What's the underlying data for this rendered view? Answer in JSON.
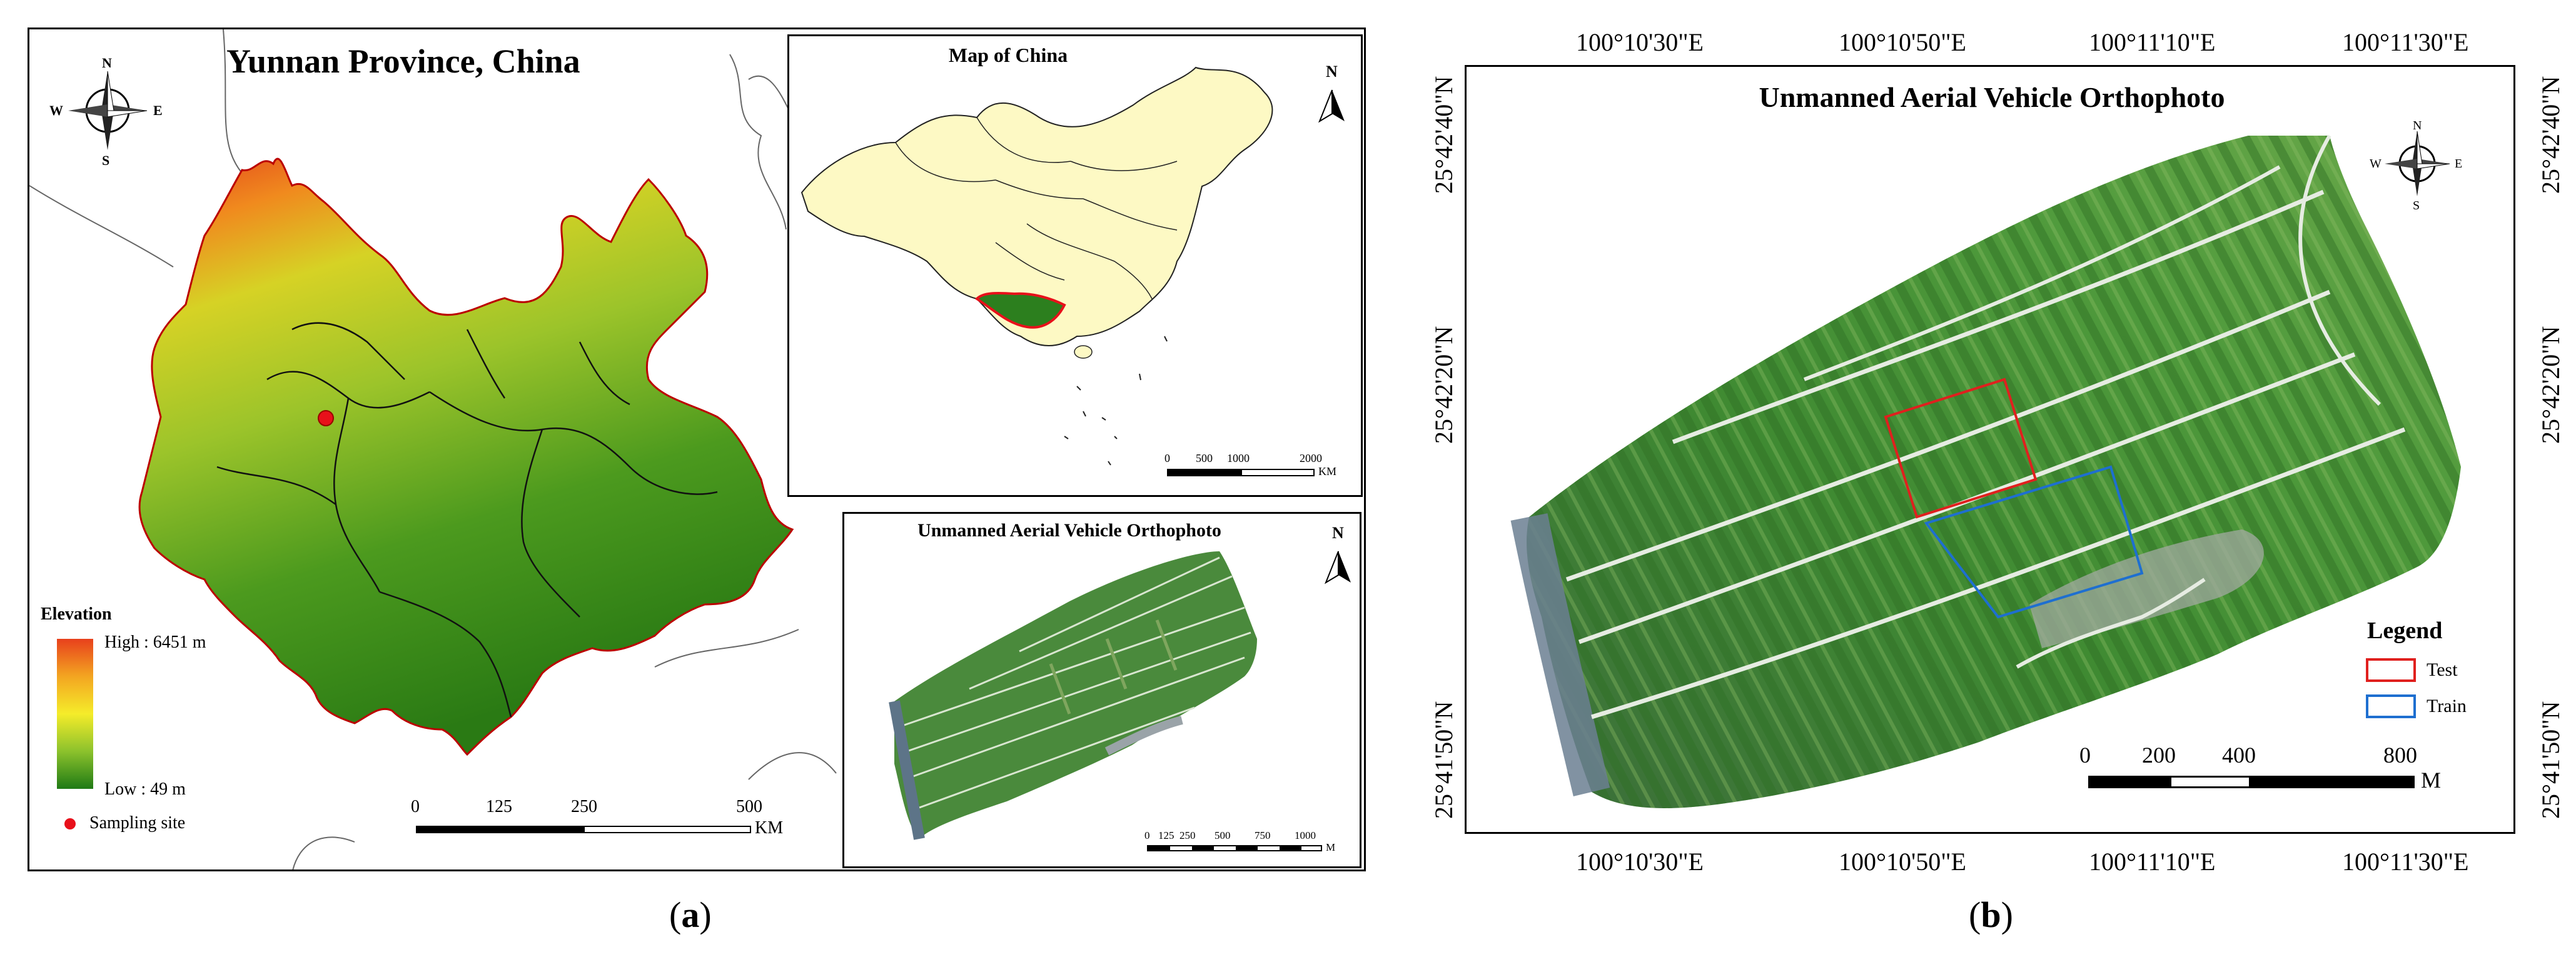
{
  "panel_a": {
    "title": "Yunnan Province, China",
    "compass": {
      "n": "N",
      "s": "S",
      "e": "E",
      "w": "W"
    },
    "legend": {
      "title": "Elevation",
      "high": "High : 6451 m",
      "low": "Low : 49 m",
      "site": "Sampling site",
      "colors": {
        "high": "#d7301f",
        "mid": "#ffff33",
        "low": "#1a7a1a",
        "site": "#e8101a"
      }
    },
    "scale": {
      "t0": "0",
      "t1": "125",
      "t2": "250",
      "t3": "500",
      "unit": "KM"
    },
    "inset_china": {
      "title": "Map of China",
      "north": "N",
      "scale": {
        "t0": "0",
        "t1": "500",
        "t2": "1000",
        "t3": "2000",
        "unit": "KM"
      }
    },
    "inset_uav": {
      "title": "Unmanned Aerial Vehicle Orthophoto",
      "north": "N",
      "scale": {
        "t0": "0",
        "t1": "125",
        "t2": "250",
        "t3": "500",
        "t4": "750",
        "t5": "1000",
        "unit": "M"
      }
    },
    "caption_letter": "a"
  },
  "panel_b": {
    "title": "Unmanned Aerial Vehicle Orthophoto",
    "compass": {
      "n": "N",
      "s": "S",
      "e": "E",
      "w": "W"
    },
    "top_coords": [
      "100°10'30\"E",
      "100°10'50\"E",
      "100°11'10\"E",
      "100°11'30\"E"
    ],
    "bottom_coords": [
      "100°10'30\"E",
      "100°10'50\"E",
      "100°11'10\"E",
      "100°11'30\"E"
    ],
    "left_coords": [
      "25°42'40\"N",
      "25°42'20\"N",
      "25°41'50\"N"
    ],
    "right_coords": [
      "25°42'40\"N",
      "25°42'20\"N",
      "25°41'50\"N"
    ],
    "legend": {
      "title": "Legend",
      "test": "Test",
      "train": "Train",
      "colors": {
        "test": "#e0201e",
        "train": "#1e6fd0"
      }
    },
    "scale": {
      "t0": "0",
      "t1": "200",
      "t2": "400",
      "t3": "800",
      "unit": "M"
    },
    "caption_letter": "b"
  }
}
